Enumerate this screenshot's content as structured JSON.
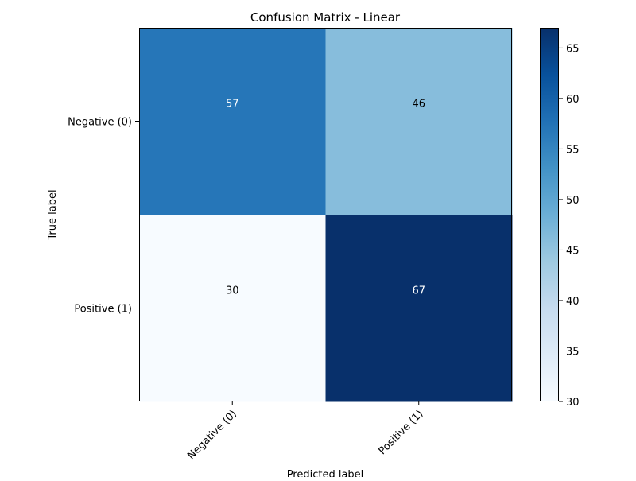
{
  "chart_data": {
    "type": "heatmap",
    "title": "Confusion Matrix - Linear",
    "xlabel": "Predicted label",
    "ylabel": "True label",
    "x_categories": [
      "Negative (0)",
      "Positive (1)"
    ],
    "y_categories": [
      "Negative (0)",
      "Positive (1)"
    ],
    "values": [
      [
        57,
        46
      ],
      [
        30,
        67
      ]
    ],
    "colormap": "Blues",
    "colorbar": {
      "range": [
        30,
        67
      ],
      "ticks": [
        30,
        35,
        40,
        45,
        50,
        55,
        60,
        65
      ]
    },
    "grid": false,
    "x_tick_rotation_deg": 45
  }
}
